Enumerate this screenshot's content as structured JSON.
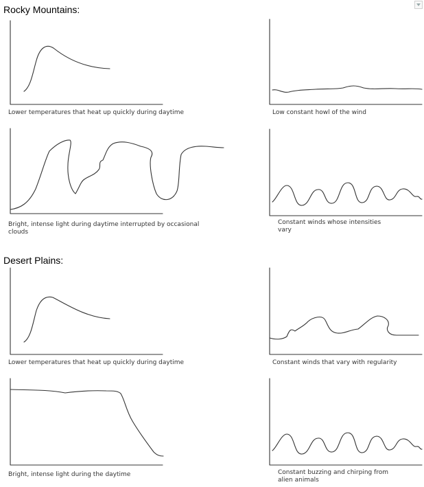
{
  "sections": [
    {
      "title": "Rocky Mountains:"
    },
    {
      "title": "Desert Plains:"
    }
  ],
  "captions": {
    "rm_temp": "Lower temperatures that heat up quickly during daytime",
    "rm_wind": "Low constant howl of the wind",
    "rm_light": "Bright, intense light during daytime interrupted by occasional clouds",
    "rm_winds_vary": "Constant winds whose intensities vary",
    "dp_temp": "Lower temperatures that heat up quickly during daytime",
    "dp_winds_regular": "Constant winds that vary with regularity",
    "dp_light": "Bright, intense light during the daytime",
    "dp_buzz": "Constant buzzing and chirping from alien animals"
  }
}
